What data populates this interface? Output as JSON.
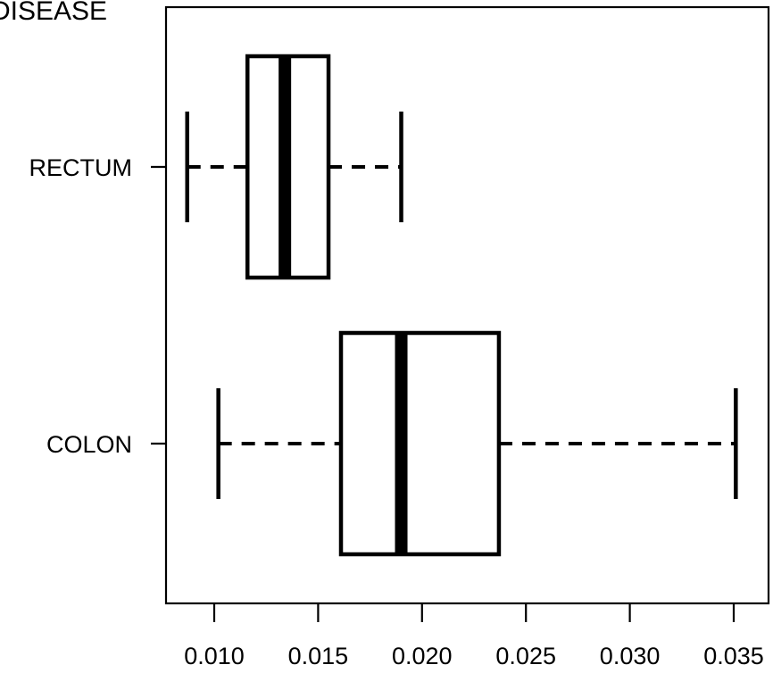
{
  "chart_data": {
    "type": "boxplot",
    "orientation": "horizontal",
    "title": "DISEASE",
    "xlabel": "",
    "ylabel": "",
    "xlim": [
      0.0075,
      0.036
    ],
    "x_ticks": [
      0.01,
      0.015,
      0.02,
      0.025,
      0.03,
      0.035
    ],
    "x_tick_labels": [
      "0.010",
      "0.015",
      "0.020",
      "0.025",
      "0.030",
      "0.035"
    ],
    "categories": [
      "RECTUM",
      "COLON"
    ],
    "boxes": [
      {
        "label": "RECTUM",
        "min": 0.0087,
        "q1": 0.0116,
        "median": 0.0134,
        "q3": 0.0155,
        "max": 0.019
      },
      {
        "label": "COLON",
        "min": 0.0102,
        "q1": 0.0161,
        "median": 0.019,
        "q3": 0.0237,
        "max": 0.0351
      }
    ],
    "grid": false,
    "colors": {
      "stroke": "#000000",
      "box_fill": "#ffffff"
    }
  }
}
